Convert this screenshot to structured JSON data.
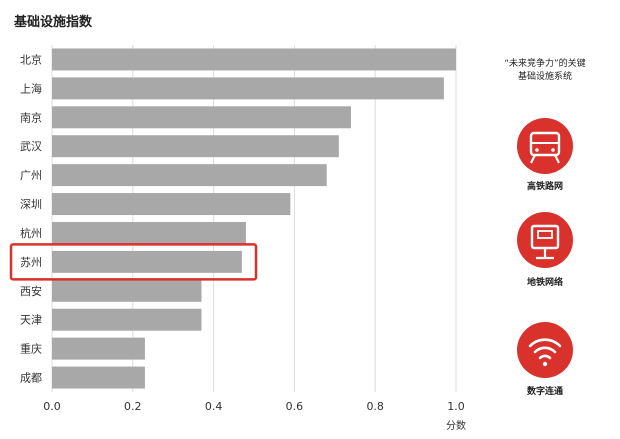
{
  "chart_data": {
    "type": "bar",
    "orientation": "horizontal",
    "title": "基础设施指数",
    "categories": [
      "北京",
      "上海",
      "南京",
      "武汉",
      "广州",
      "深圳",
      "杭州",
      "苏州",
      "西安",
      "天津",
      "重庆",
      "成都"
    ],
    "values": [
      1.0,
      0.97,
      0.74,
      0.71,
      0.68,
      0.59,
      0.48,
      0.47,
      0.37,
      0.37,
      0.23,
      0.23
    ],
    "xlabel": "分数",
    "xlim": [
      0,
      1.0
    ],
    "xticks": [
      "0.0",
      "0.2",
      "0.4",
      "0.6",
      "0.8",
      "1.0"
    ],
    "grid": "vertical",
    "highlight": "苏州",
    "bar_color": "#a8a8a8",
    "highlight_border_color": "#d9312b"
  },
  "sidebar": {
    "caption_lines": [
      "“未来竞争力”的关键",
      "基础设施系统"
    ],
    "items": [
      {
        "label": "高铁路网",
        "icon": "train-icon"
      },
      {
        "label": "地铁网络",
        "icon": "subway-icon"
      },
      {
        "label": "数字连通",
        "icon": "wifi-icon"
      }
    ],
    "icon_color": "#d9312b"
  }
}
